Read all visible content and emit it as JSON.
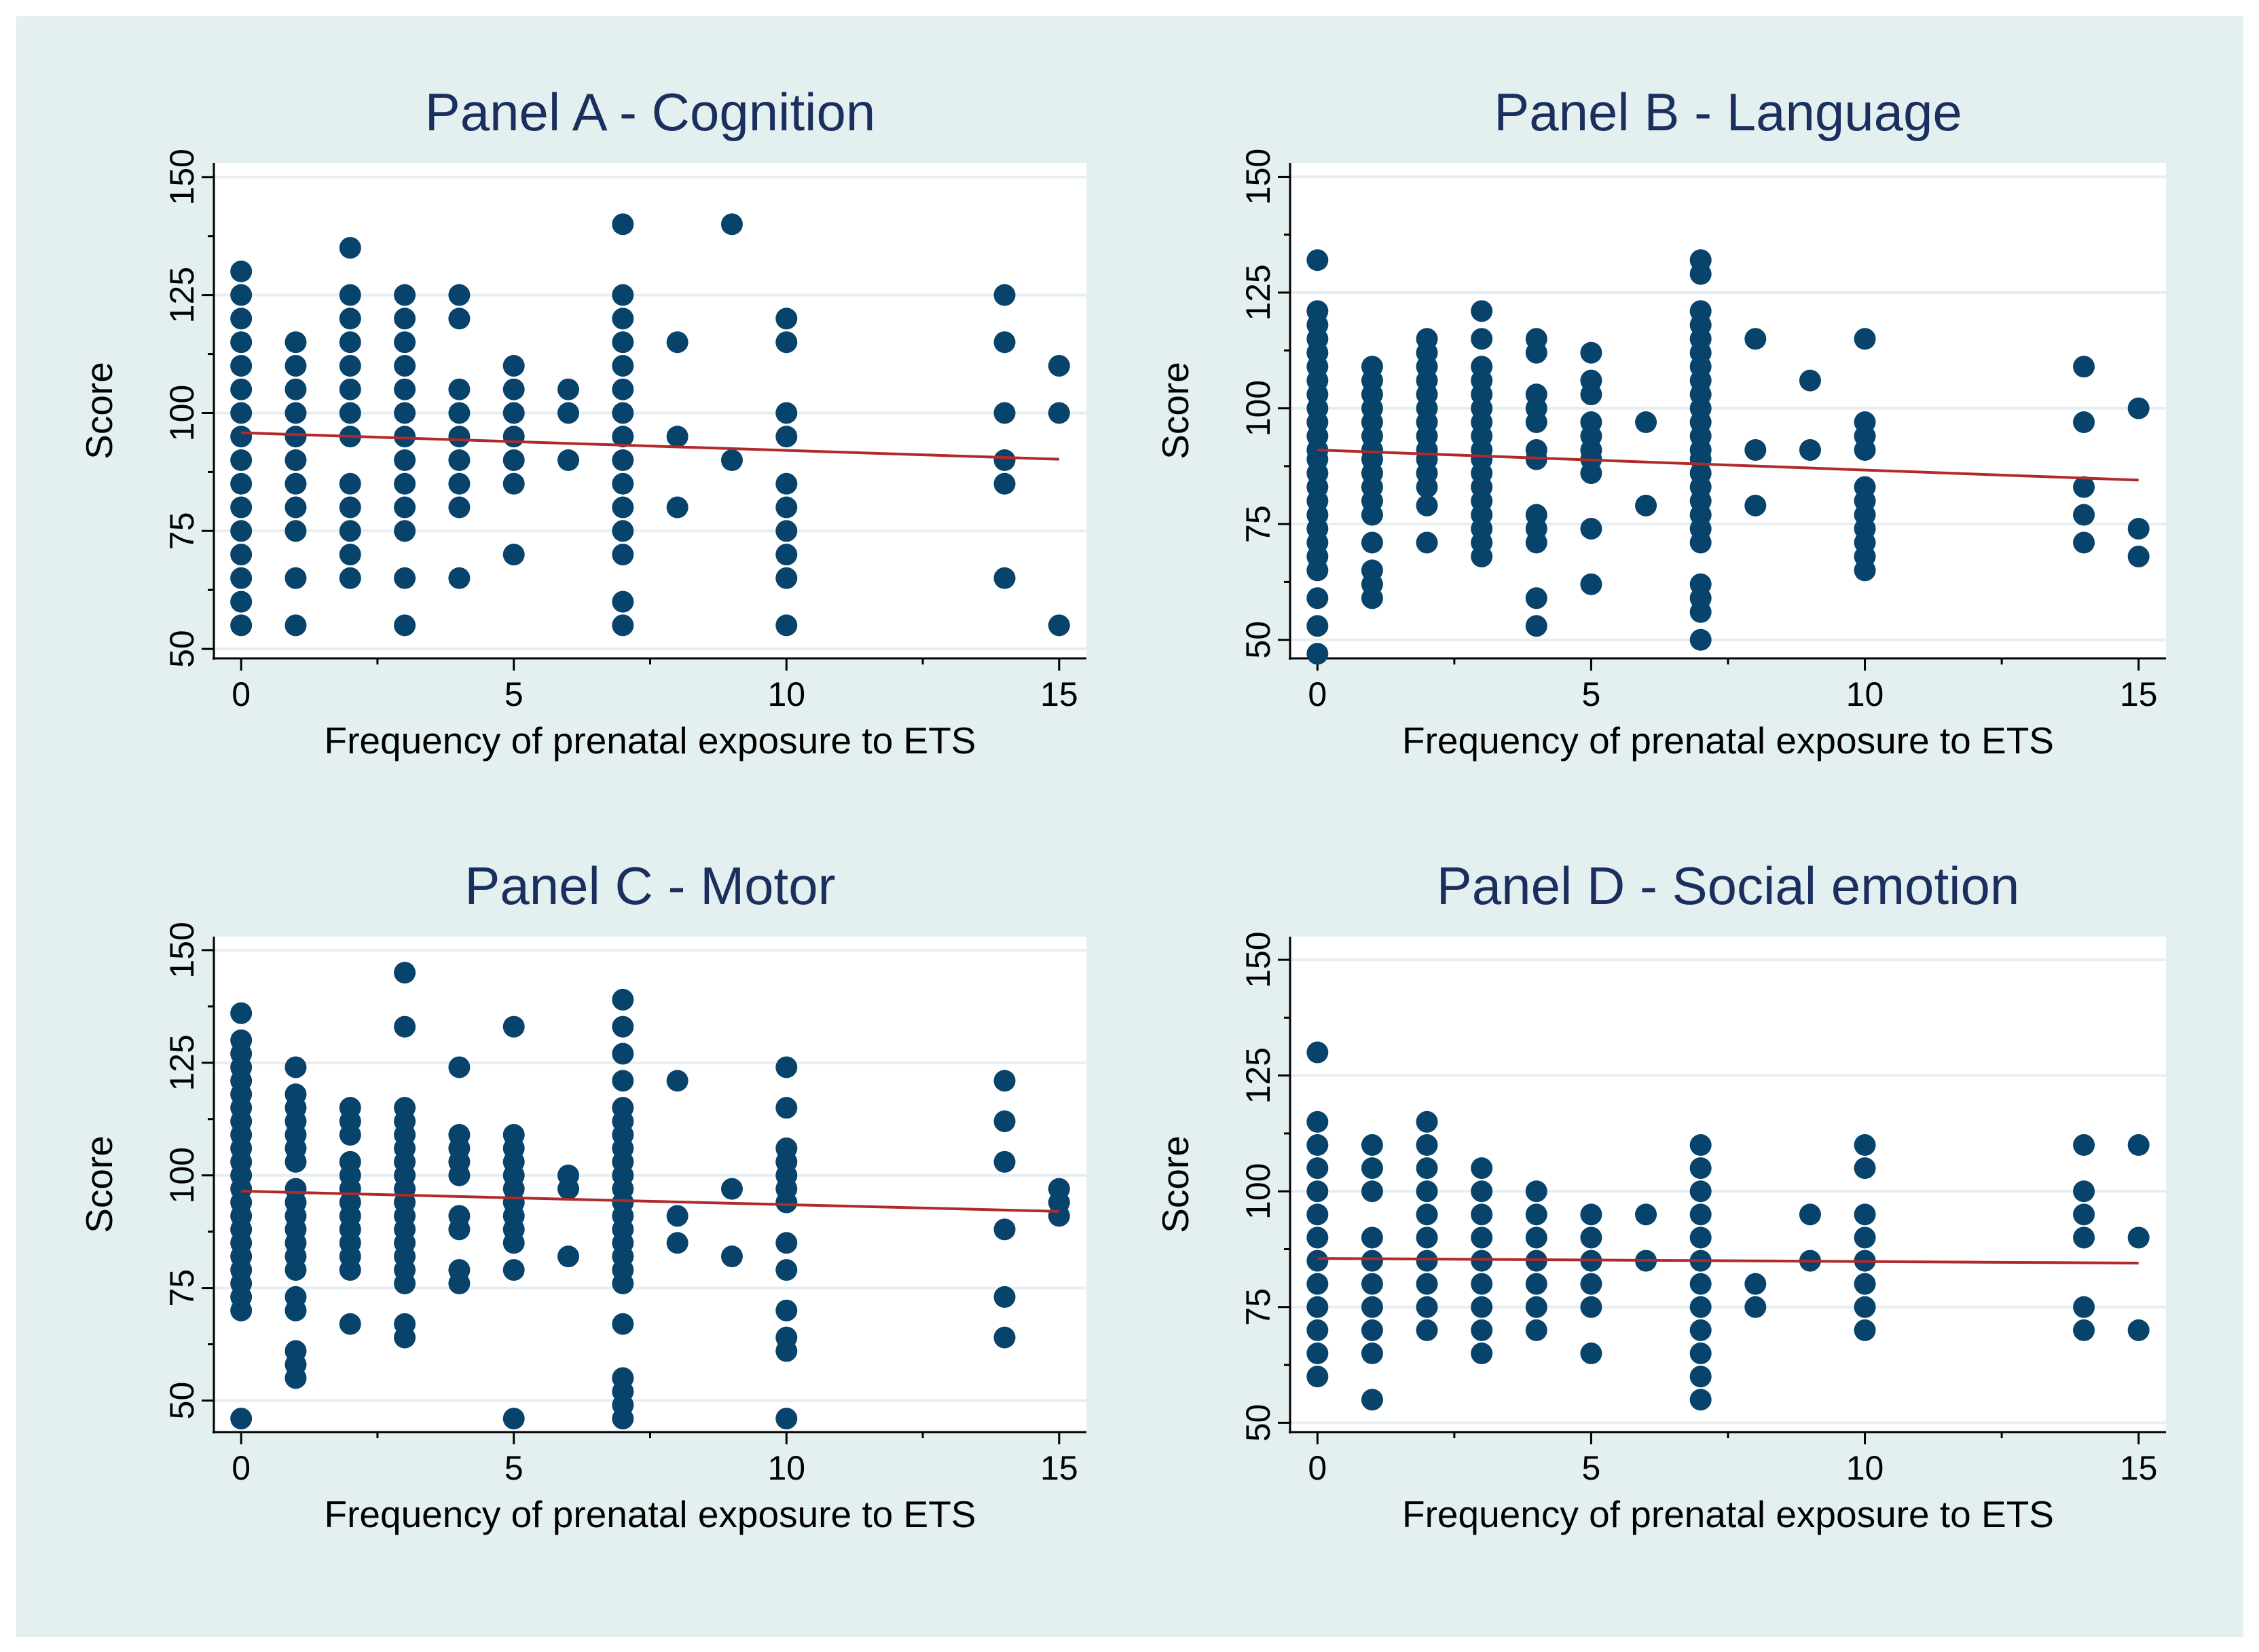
{
  "figure": {
    "background_color": "#e4f0f0",
    "plot_background": "#ffffff",
    "marker_color": "#08436b",
    "fit_line_color": "#b02a2a",
    "title_color": "#1a2f5e"
  },
  "chart_data": [
    {
      "type": "scatter",
      "title": "Panel A - Cognition",
      "xlabel": "Frequency of prenatal exposure to ETS",
      "ylabel": "Score",
      "xlim": [
        -0.5,
        15.5
      ],
      "ylim": [
        48,
        153
      ],
      "xticks": [
        0,
        5,
        10,
        15
      ],
      "yticks": [
        50,
        75,
        100,
        125,
        150
      ],
      "grid": true,
      "points": {
        "0": [
          55,
          60,
          65,
          70,
          75,
          80,
          85,
          90,
          95,
          100,
          105,
          110,
          115,
          120,
          125,
          130
        ],
        "1": [
          55,
          65,
          75,
          80,
          85,
          90,
          95,
          100,
          105,
          110,
          115
        ],
        "2": [
          65,
          70,
          75,
          80,
          85,
          95,
          100,
          105,
          110,
          115,
          120,
          125,
          135
        ],
        "3": [
          55,
          65,
          75,
          80,
          85,
          90,
          95,
          100,
          105,
          110,
          115,
          120,
          125
        ],
        "4": [
          65,
          80,
          85,
          90,
          95,
          100,
          105,
          120,
          125
        ],
        "5": [
          70,
          85,
          90,
          95,
          100,
          105,
          110
        ],
        "6": [
          90,
          100,
          105
        ],
        "7": [
          55,
          60,
          70,
          75,
          80,
          85,
          90,
          95,
          100,
          105,
          110,
          115,
          120,
          125,
          140
        ],
        "8": [
          80,
          95,
          115
        ],
        "9": [
          90,
          140
        ],
        "10": [
          55,
          65,
          70,
          75,
          80,
          85,
          95,
          100,
          115,
          120
        ],
        "14": [
          65,
          85,
          90,
          100,
          115,
          125
        ],
        "15": [
          55,
          100,
          110
        ]
      },
      "fit_line": {
        "x": [
          0,
          15
        ],
        "y": [
          95.8,
          90.2
        ]
      }
    },
    {
      "type": "scatter",
      "title": "Panel B - Language",
      "xlabel": "Frequency of prenatal exposure to ETS",
      "ylabel": "Score",
      "xlim": [
        -0.5,
        15.5
      ],
      "ylim": [
        46,
        153
      ],
      "xticks": [
        0,
        5,
        10,
        15
      ],
      "yticks": [
        50,
        75,
        100,
        125,
        150
      ],
      "grid": true,
      "points": {
        "0": [
          47,
          53,
          59,
          65,
          68,
          71,
          74,
          77,
          80,
          83,
          86,
          89,
          91,
          94,
          97,
          100,
          103,
          106,
          109,
          112,
          115,
          118,
          121,
          132
        ],
        "1": [
          59,
          62,
          65,
          71,
          77,
          80,
          83,
          86,
          89,
          91,
          94,
          97,
          100,
          103,
          106,
          109
        ],
        "2": [
          71,
          79,
          83,
          86,
          89,
          91,
          94,
          97,
          100,
          103,
          106,
          109,
          112,
          115
        ],
        "3": [
          68,
          71,
          74,
          77,
          80,
          83,
          86,
          89,
          91,
          94,
          97,
          100,
          103,
          106,
          109,
          115,
          121
        ],
        "4": [
          53,
          59,
          71,
          74,
          77,
          89,
          91,
          97,
          100,
          103,
          112,
          115
        ],
        "5": [
          62,
          74,
          86,
          89,
          91,
          94,
          97,
          103,
          106,
          112
        ],
        "6": [
          79,
          97
        ],
        "7": [
          50,
          56,
          59,
          62,
          71,
          74,
          77,
          80,
          83,
          86,
          89,
          91,
          94,
          97,
          100,
          103,
          106,
          109,
          112,
          115,
          118,
          121,
          129,
          132
        ],
        "8": [
          79,
          91,
          115
        ],
        "9": [
          91,
          106
        ],
        "10": [
          65,
          68,
          71,
          74,
          77,
          80,
          83,
          91,
          94,
          97,
          115
        ],
        "14": [
          71,
          77,
          83,
          97,
          109
        ],
        "15": [
          68,
          74,
          100
        ]
      },
      "fit_line": {
        "x": [
          0,
          15
        ],
        "y": [
          91.0,
          84.5
        ]
      }
    },
    {
      "type": "scatter",
      "title": "Panel C - Motor",
      "xlabel": "Frequency of prenatal exposure to ETS",
      "ylabel": "Score",
      "xlim": [
        -0.5,
        15.5
      ],
      "ylim": [
        43,
        153
      ],
      "xticks": [
        0,
        5,
        10,
        15
      ],
      "yticks": [
        50,
        75,
        100,
        125,
        150
      ],
      "grid": true,
      "points": {
        "0": [
          46,
          70,
          73,
          76,
          79,
          82,
          85,
          88,
          91,
          94,
          97,
          100,
          103,
          106,
          109,
          112,
          115,
          118,
          121,
          124,
          127,
          130,
          136
        ],
        "1": [
          55,
          58,
          61,
          70,
          73,
          79,
          82,
          85,
          88,
          91,
          94,
          97,
          103,
          106,
          109,
          112,
          115,
          118,
          124
        ],
        "2": [
          67,
          79,
          82,
          85,
          88,
          91,
          94,
          97,
          100,
          103,
          109,
          112,
          115
        ],
        "3": [
          64,
          67,
          76,
          79,
          82,
          85,
          88,
          91,
          94,
          97,
          100,
          103,
          106,
          109,
          112,
          115,
          133,
          145
        ],
        "4": [
          76,
          79,
          88,
          91,
          100,
          103,
          106,
          109,
          124
        ],
        "5": [
          46,
          79,
          85,
          88,
          91,
          94,
          97,
          100,
          103,
          106,
          109,
          133
        ],
        "6": [
          82,
          97,
          100
        ],
        "7": [
          46,
          49,
          52,
          55,
          67,
          76,
          79,
          82,
          85,
          88,
          91,
          94,
          97,
          100,
          103,
          106,
          109,
          112,
          115,
          121,
          127,
          133,
          139
        ],
        "8": [
          85,
          91,
          121
        ],
        "9": [
          82,
          97
        ],
        "10": [
          46,
          61,
          64,
          70,
          79,
          85,
          94,
          97,
          100,
          103,
          106,
          115,
          124
        ],
        "14": [
          64,
          73,
          88,
          103,
          112,
          121
        ],
        "15": [
          91,
          94,
          97
        ]
      },
      "fit_line": {
        "x": [
          0,
          15
        ],
        "y": [
          96.5,
          92.0
        ]
      }
    },
    {
      "type": "scatter",
      "title": "Panel D - Social emotion",
      "xlabel": "Frequency of prenatal exposure to ETS",
      "ylabel": "Score",
      "xlim": [
        -0.5,
        15.5
      ],
      "ylim": [
        48,
        155
      ],
      "xticks": [
        0,
        5,
        10,
        15
      ],
      "yticks": [
        50,
        75,
        100,
        125,
        150
      ],
      "grid": true,
      "points": {
        "0": [
          60,
          65,
          70,
          75,
          80,
          85,
          90,
          95,
          100,
          105,
          110,
          115,
          130
        ],
        "1": [
          55,
          65,
          70,
          75,
          80,
          85,
          90,
          100,
          105,
          110
        ],
        "2": [
          70,
          75,
          80,
          85,
          90,
          95,
          100,
          105,
          110,
          115
        ],
        "3": [
          65,
          70,
          75,
          80,
          85,
          90,
          95,
          100,
          105
        ],
        "4": [
          70,
          75,
          80,
          85,
          90,
          95,
          100
        ],
        "5": [
          65,
          75,
          80,
          85,
          90,
          95
        ],
        "6": [
          85,
          95
        ],
        "7": [
          55,
          60,
          65,
          70,
          75,
          80,
          85,
          90,
          95,
          100,
          105,
          110
        ],
        "8": [
          75,
          80
        ],
        "9": [
          85,
          95
        ],
        "10": [
          70,
          75,
          80,
          85,
          90,
          95,
          105,
          110
        ],
        "14": [
          70,
          75,
          90,
          95,
          100,
          110
        ],
        "15": [
          70,
          90,
          110
        ]
      },
      "fit_line": {
        "x": [
          0,
          15
        ],
        "y": [
          85.5,
          84.5
        ]
      }
    }
  ]
}
